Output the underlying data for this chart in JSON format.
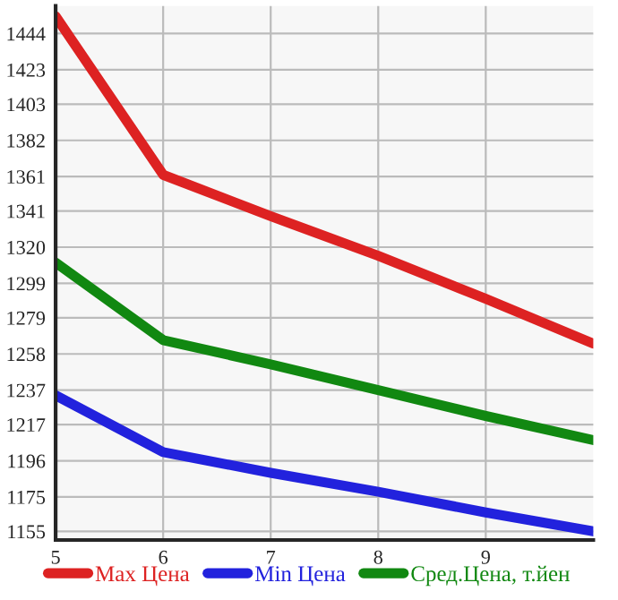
{
  "chart_data": {
    "type": "line",
    "x": [
      5,
      6,
      7,
      8,
      9,
      10
    ],
    "series": [
      {
        "name": "Max Цена",
        "color": "#dd2222",
        "values": [
          1454,
          1362,
          1338,
          1315,
          1290,
          1264
        ]
      },
      {
        "name": "Min Цена",
        "color": "#2222dd",
        "values": [
          1234,
          1201,
          1189,
          1178,
          1166,
          1155
        ]
      },
      {
        "name": "Сред.Цена, т.йен",
        "color": "#118811",
        "values": [
          1311,
          1266,
          1252,
          1237,
          1222,
          1208
        ]
      }
    ],
    "xlim": [
      5,
      10
    ],
    "xticks": [
      5,
      6,
      7,
      8,
      9
    ],
    "ylim": [
      1150,
      1460
    ],
    "yticks": [
      1155,
      1175,
      1196,
      1217,
      1237,
      1258,
      1279,
      1299,
      1320,
      1341,
      1361,
      1382,
      1403,
      1423,
      1444
    ],
    "grid": true,
    "legend": "bottom",
    "marker": "none",
    "line_style": "solid"
  }
}
